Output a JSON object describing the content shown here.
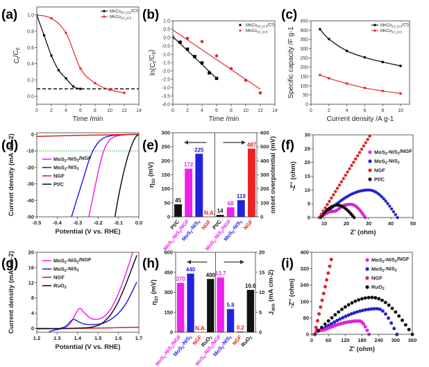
{
  "chart_data": [
    {
      "id": "a",
      "panel_label": "(a)",
      "type": "line",
      "title": "",
      "xlabel": "Time /min",
      "ylabel": "C_t/C_0",
      "xlim": [
        0,
        14
      ],
      "ylim": [
        -0.1,
        1.1
      ],
      "xticks": [
        0,
        2,
        4,
        6,
        8,
        10,
        12,
        14
      ],
      "yticks": [
        0.0,
        0.2,
        0.4,
        0.6,
        0.8,
        1.0
      ],
      "ytick_labels": [
        "0.0",
        "0.2",
        "0.4",
        "0.6",
        "0.8",
        "1.0"
      ],
      "legend_position": "top-right",
      "reference_line": {
        "y": 0.09,
        "style": "dashed",
        "color": "#000000"
      },
      "series": [
        {
          "name": "MnCo2O4.5/CS",
          "color": "#000000",
          "marker": "square",
          "x": [
            0,
            1,
            2,
            3,
            4,
            5,
            6
          ],
          "y": [
            1.0,
            0.75,
            0.5,
            0.32,
            0.22,
            0.12,
            0.09
          ]
        },
        {
          "name": "MnCo2O4.5",
          "color": "#e8262a",
          "marker": "square",
          "x": [
            0,
            2,
            4,
            6,
            8,
            10,
            12
          ],
          "y": [
            1.0,
            0.96,
            0.78,
            0.34,
            0.16,
            0.08,
            0.04
          ]
        }
      ]
    },
    {
      "id": "b",
      "panel_label": "(b)",
      "type": "scatter",
      "title": "",
      "xlabel": "Time /min",
      "ylabel": "ln(C_t/C_0)",
      "xlim": [
        0,
        14
      ],
      "ylim": [
        -4.0,
        1.0
      ],
      "xticks": [
        0,
        2,
        4,
        6,
        8,
        10,
        12,
        14
      ],
      "yticks": [
        -4.0,
        -3.5,
        -3.0,
        -2.5,
        -2.0,
        -1.5,
        -1.0,
        -0.5,
        0.0,
        0.5,
        1.0
      ],
      "ytick_labels": [
        "-4.0",
        "-3.5",
        "-3.0",
        "-2.5",
        "-2.0",
        "-1.5",
        "-1.0",
        "-0.5",
        "0.0",
        "0.5",
        "1.0"
      ],
      "legend_position": "top-right",
      "series": [
        {
          "name": "MnCo2O4.5/CS",
          "color": "#000000",
          "marker": "square",
          "x": [
            0,
            1,
            2,
            3,
            4,
            5,
            6
          ],
          "y": [
            0.0,
            -0.28,
            -0.7,
            -1.14,
            -1.52,
            -2.12,
            -2.45
          ],
          "fit": {
            "x": [
              0,
              6
            ],
            "y": [
              0.05,
              -2.45
            ]
          }
        },
        {
          "name": "MnCo2O4.5",
          "color": "#e8262a",
          "marker": "circle",
          "x": [
            0,
            2,
            4,
            6,
            8,
            10,
            12
          ],
          "y": [
            0.0,
            -0.05,
            -0.24,
            -1.1,
            -1.86,
            -2.56,
            -3.32
          ],
          "fit": {
            "x": [
              0,
              12
            ],
            "y": [
              0.45,
              -3.1
            ]
          }
        }
      ]
    },
    {
      "id": "c",
      "panel_label": "(c)",
      "type": "line",
      "title": "",
      "xlabel": "Current density /A g^-1",
      "ylabel": "Specific capacity /F g^-1",
      "xlim": [
        0,
        11
      ],
      "ylim": [
        0,
        450
      ],
      "xticks": [
        0,
        2,
        4,
        6,
        8,
        10
      ],
      "yticks": [
        0,
        50,
        100,
        150,
        200,
        250,
        300,
        350,
        400,
        450
      ],
      "ytick_labels": [
        "0",
        "50",
        "100",
        "150",
        "200",
        "250",
        "300",
        "350",
        "400",
        "450"
      ],
      "legend_position": "top-right",
      "series": [
        {
          "name": "MnCo2O4.5/CS",
          "color": "#000000",
          "marker": "square",
          "x": [
            1,
            2,
            4,
            6,
            8,
            10
          ],
          "y": [
            405,
            352,
            288,
            253,
            228,
            207
          ]
        },
        {
          "name": "MnCo2O4.5",
          "color": "#e8262a",
          "marker": "square",
          "x": [
            1,
            2,
            4,
            6,
            8,
            10
          ],
          "y": [
            158,
            140,
            112,
            88,
            72,
            58
          ]
        }
      ]
    },
    {
      "id": "d",
      "panel_label": "(d)",
      "type": "line",
      "title": "",
      "xlabel": "Potential (V vs. RHE)",
      "ylabel": "Current density (mA cm^-2)",
      "xlim": [
        -0.5,
        0.0
      ],
      "ylim": [
        -50,
        1
      ],
      "xticks": [
        -0.5,
        -0.4,
        -0.3,
        -0.2,
        -0.1,
        0.0
      ],
      "xtick_labels": [
        "-0.5",
        "-0.4",
        "-0.3",
        "-0.2",
        "-0.1",
        "0.0"
      ],
      "yticks": [
        -50,
        -40,
        -30,
        -20,
        -10,
        0
      ],
      "ytick_labels": [
        "-50",
        "-40",
        "-30",
        "-20",
        "-10",
        "0"
      ],
      "legend_position": "center-left",
      "reference_line": {
        "y": -10,
        "style": "dotted",
        "color": "#22aa44"
      },
      "series": [
        {
          "name": "MoS2-NiS2/NGF",
          "color": "#ee22ee",
          "x": [
            -0.245,
            -0.225,
            -0.205,
            -0.19,
            -0.172,
            -0.155,
            -0.14,
            -0.12,
            -0.1,
            -0.07,
            -0.04,
            0.0
          ],
          "y": [
            -50,
            -38,
            -26,
            -18,
            -10,
            -5.5,
            -3,
            -1.5,
            -0.8,
            -0.3,
            -0.1,
            0
          ]
        },
        {
          "name": "MoS2-NiS2",
          "color": "#2222dd",
          "x": [
            -0.33,
            -0.3,
            -0.27,
            -0.245,
            -0.225,
            -0.2,
            -0.18,
            -0.16,
            -0.13,
            -0.1,
            -0.05,
            0.0
          ],
          "y": [
            -50,
            -38,
            -26,
            -16,
            -10,
            -5,
            -2.8,
            -1.5,
            -0.7,
            -0.3,
            -0.1,
            0
          ]
        },
        {
          "name": "NGF",
          "color": "#dd2222",
          "x": [
            -0.5,
            -0.4,
            -0.3,
            -0.2,
            -0.1,
            0.0
          ],
          "y": [
            -1.2,
            -0.9,
            -0.6,
            -0.35,
            -0.15,
            0
          ]
        },
        {
          "name": "Pt/C",
          "color": "#111111",
          "x": [
            -0.117,
            -0.1,
            -0.08,
            -0.06,
            -0.045,
            -0.03,
            -0.02,
            -0.01,
            0.0
          ],
          "y": [
            -50,
            -38,
            -26,
            -16,
            -10,
            -5,
            -2.5,
            -0.8,
            0
          ]
        }
      ]
    },
    {
      "id": "e",
      "panel_label": "(e)",
      "type": "bar",
      "title": "",
      "xlabel": "",
      "ylabel": "η_10 (mV)",
      "ylabel_right": "onset overpotential (mV)",
      "ylim": [
        0,
        300
      ],
      "ylim_right": [
        0,
        600
      ],
      "yticks": [
        0,
        50,
        100,
        150,
        200,
        250,
        300
      ],
      "ytick_labels": [
        "0",
        "50",
        "100",
        "150",
        "200",
        "250",
        "300"
      ],
      "yticks_right": [
        0,
        100,
        200,
        300,
        400,
        500,
        600
      ],
      "ytick_labels_right": [
        "0",
        "100",
        "200",
        "300",
        "400",
        "500",
        "600"
      ],
      "arrows": [
        "left",
        "right"
      ],
      "groups": [
        {
          "axis": "left",
          "categories": [
            "Pt/C",
            "MoS2-NiS2/NGF",
            "MoS2-NiS2",
            "NGF"
          ],
          "values": [
            45,
            172,
            225,
            null
          ],
          "labels": [
            "45",
            "172",
            "225",
            "N.A."
          ],
          "colors": [
            "#111111",
            "#ee22ee",
            "#2222dd",
            "#ee2222"
          ]
        },
        {
          "axis": "right",
          "categories": [
            "Pt/C",
            "MoS2-NiS2/NGF",
            "MoS2-NiS2",
            "NGF"
          ],
          "values": [
            14,
            68,
            119,
            487
          ],
          "labels": [
            "14",
            "68",
            "119",
            "487"
          ],
          "colors": [
            "#111111",
            "#ee22ee",
            "#2222dd",
            "#ee2222"
          ]
        }
      ]
    },
    {
      "id": "f",
      "panel_label": "(f)",
      "type": "scatter",
      "title": "",
      "xlabel": "Z' (ohm)",
      "ylabel": "-Z'' (ohm)",
      "xlim": [
        5,
        50
      ],
      "ylim": [
        0,
        30
      ],
      "xticks": [
        10,
        20,
        30,
        40,
        50
      ],
      "yticks": [
        0,
        5,
        10,
        15,
        20,
        25,
        30
      ],
      "ytick_labels": [
        "0",
        "5",
        "10",
        "15",
        "20",
        "25",
        "30"
      ],
      "legend_position": "top-right",
      "series": [
        {
          "name": "MoS2-NiS2/NGF",
          "color": "#ee22ee",
          "shape": "semicircle-double",
          "x_start": 8,
          "x_end": 28.5,
          "peak_x": 22,
          "peak_y": 4.8
        },
        {
          "name": "MoS2-NiS2",
          "color": "#2222dd",
          "shape": "semicircle",
          "x_start": 8.5,
          "x_end": 43,
          "peak_x": 30,
          "peak_y": 10
        },
        {
          "name": "NGF",
          "color": "#ee2222",
          "shape": "line",
          "x_start": 7.8,
          "x_end": 30.5,
          "y_end": 29.5
        },
        {
          "name": "Pt/C",
          "color": "#111111",
          "shape": "semicircle",
          "x_start": 8,
          "x_end": 23.5,
          "peak_x": 16,
          "peak_y": 4.5
        }
      ]
    },
    {
      "id": "g",
      "panel_label": "(g)",
      "type": "line",
      "title": "",
      "xlabel": "Potential (V vs. RHE)",
      "ylabel": "Current density (mA cm^-2)",
      "xlim": [
        1.2,
        1.7
      ],
      "ylim": [
        -1,
        20
      ],
      "xticks": [
        1.2,
        1.3,
        1.4,
        1.5,
        1.6,
        1.7
      ],
      "xtick_labels": [
        "1.2",
        "1.3",
        "1.4",
        "1.5",
        "1.6",
        "1.7"
      ],
      "yticks": [
        0,
        4,
        8,
        12,
        16,
        20
      ],
      "ytick_labels": [
        "0",
        "4",
        "8",
        "12",
        "16",
        "20"
      ],
      "legend_position": "top-left",
      "series": [
        {
          "name": "MoS2-NiS2/NGF",
          "color": "#ee22ee",
          "x": [
            1.28,
            1.32,
            1.36,
            1.39,
            1.41,
            1.43,
            1.46,
            1.49,
            1.52,
            1.55,
            1.58,
            1.61,
            1.64,
            1.67
          ],
          "y": [
            -0.5,
            -0.1,
            1.0,
            3.8,
            5.3,
            4.3,
            2.8,
            2.4,
            2.8,
            4.2,
            6.8,
            10.5,
            15.0,
            20.0
          ]
        },
        {
          "name": "MoS2-NiS2",
          "color": "#2222dd",
          "x": [
            1.26,
            1.3,
            1.34,
            1.36,
            1.38,
            1.4,
            1.43,
            1.47,
            1.52,
            1.56,
            1.6,
            1.64,
            1.69
          ],
          "y": [
            -0.8,
            -0.2,
            0.5,
            1.6,
            2.4,
            1.9,
            1.2,
            1.0,
            1.3,
            2.3,
            4.0,
            6.8,
            12.2
          ]
        },
        {
          "name": "NGF",
          "color": "#dd2222",
          "x": [
            1.2,
            1.4,
            1.5,
            1.6,
            1.7
          ],
          "y": [
            -0.1,
            0.0,
            0.1,
            0.2,
            0.3
          ]
        },
        {
          "name": "RuO2",
          "color": "#111111",
          "x": [
            1.2,
            1.35,
            1.45,
            1.5,
            1.53,
            1.56,
            1.59,
            1.62,
            1.65,
            1.69
          ],
          "y": [
            0,
            0,
            0.2,
            0.8,
            1.8,
            3.5,
            6.0,
            9.5,
            13.5,
            19.2
          ]
        }
      ]
    },
    {
      "id": "h",
      "panel_label": "(h)",
      "type": "bar",
      "title": "",
      "xlabel": "",
      "ylabel": "η_10 (mV)",
      "ylabel_right": "J_400 (mA cm^-2)",
      "ylim": [
        0,
        600
      ],
      "ylim_right": [
        0,
        20
      ],
      "yticks": [
        0,
        150,
        300,
        450,
        600
      ],
      "ytick_labels": [
        "0",
        "150",
        "300",
        "450",
        "600"
      ],
      "yticks_right": [
        0,
        5,
        10,
        15,
        20
      ],
      "ytick_labels_right": [
        "0",
        "5",
        "10",
        "15",
        "20"
      ],
      "arrows": [
        "left",
        "right"
      ],
      "groups": [
        {
          "axis": "left",
          "categories": [
            "MoS2-NiS2/NGF",
            "MoS2-NiS2",
            "NGF",
            "RuO2"
          ],
          "values": [
            370,
            440,
            null,
            400
          ],
          "labels": [
            "370",
            "440",
            "N.A.",
            "400"
          ],
          "colors": [
            "#ee22ee",
            "#2222dd",
            "#ee2222",
            "#111111"
          ]
        },
        {
          "axis": "right",
          "categories": [
            "MoS2-NiS2/NGF",
            "MoS2-NiS2",
            "NGF",
            "RuO2"
          ],
          "values": [
            13.7,
            5.8,
            0.2,
            10.6
          ],
          "labels": [
            "13.7",
            "5.8",
            "0.2",
            "10.6"
          ],
          "colors": [
            "#ee22ee",
            "#2222dd",
            "#ee2222",
            "#111111"
          ]
        }
      ]
    },
    {
      "id": "i",
      "panel_label": "(i)",
      "type": "scatter",
      "title": "",
      "xlabel": "Z' (ohm)",
      "ylabel": "-Z'' (ohm)",
      "xlim": [
        0,
        360
      ],
      "ylim": [
        0,
        400
      ],
      "xticks": [
        0,
        60,
        120,
        180,
        240,
        300,
        360
      ],
      "yticks": [
        0,
        80,
        160,
        240,
        320,
        400
      ],
      "ytick_labels": [
        "0",
        "80",
        "160",
        "240",
        "320",
        "400"
      ],
      "legend_position": "top-right",
      "series": [
        {
          "name": "MoS2-NiS2/NGF",
          "color": "#ee22ee",
          "shape": "arc",
          "x_start": 10,
          "x_end": 205,
          "peak_x": 170,
          "peak_y": 65,
          "shoulder_y": 20
        },
        {
          "name": "MoS2-NiS2",
          "color": "#2222dd",
          "shape": "arc",
          "x_start": 10,
          "x_end": 305,
          "peak_x": 235,
          "peak_y": 125,
          "shoulder_y": 20
        },
        {
          "name": "NGF",
          "color": "#ee2222",
          "shape": "line",
          "x_start": 10,
          "x_end": 70,
          "y_end": 365
        },
        {
          "name": "RuO2",
          "color": "#111111",
          "shape": "arc",
          "x_start": 12,
          "x_end": 360,
          "peak_x": 215,
          "peak_y": 180,
          "shoulder_y": 0
        }
      ]
    }
  ]
}
